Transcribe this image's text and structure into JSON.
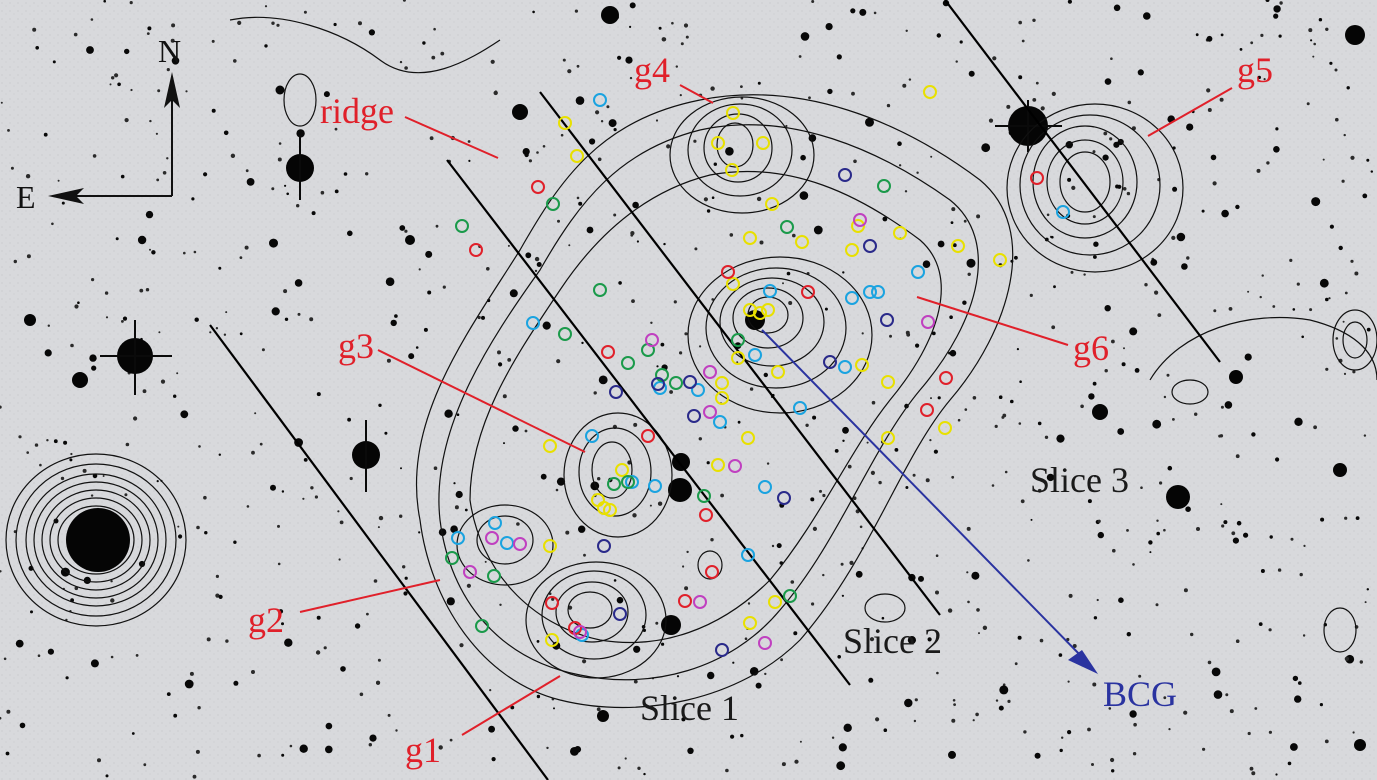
{
  "figure": {
    "compass": {
      "north": "N",
      "east": "E"
    },
    "labels": {
      "ridge": "ridge",
      "g1": "g1",
      "g2": "g2",
      "g3": "g3",
      "g4": "g4",
      "g5": "g5",
      "g6": "g6",
      "slice1": "Slice 1",
      "slice2": "Slice 2",
      "slice3": "Slice 3",
      "bcg": "BCG"
    },
    "colors": {
      "background": "#d9dadd",
      "label_red": "#e0202a",
      "label_blue": "#2a33a0",
      "contour": "#111111",
      "marker_yellow": "#e8e000",
      "marker_cyan": "#1aa3e0",
      "marker_green": "#1a9a4a",
      "marker_red": "#e0202a",
      "marker_magenta": "#c040c0",
      "marker_navy": "#2a2a8a"
    }
  }
}
